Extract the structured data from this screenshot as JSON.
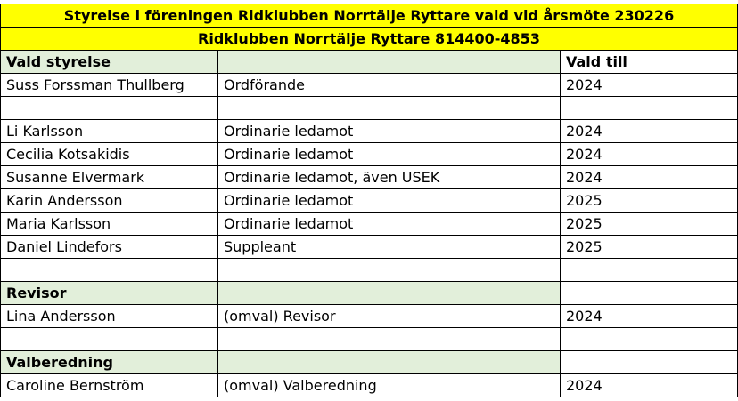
{
  "header": {
    "title": "Styrelse i föreningen Ridklubben Norrtälje Ryttare vald vid årsmöte 230226",
    "subtitle": "Ridklubben Norrtälje Ryttare 814400-4853"
  },
  "columns": {
    "name": "Vald styrelse",
    "role": "",
    "until": "Vald till"
  },
  "board": [
    {
      "name": "Suss Forssman Thullberg",
      "role": "Ordförande",
      "until": "2024"
    },
    {
      "name": "Li Karlsson",
      "role": "Ordinarie ledamot",
      "until": "2024"
    },
    {
      "name": "Cecilia Kotsakidis",
      "role": "Ordinarie ledamot",
      "until": "2024"
    },
    {
      "name": "Susanne Elvermark",
      "role": "Ordinarie ledamot, även USEK",
      "until": "2024"
    },
    {
      "name": "Karin Andersson",
      "role": "Ordinarie ledamot",
      "until": "2025"
    },
    {
      "name": "Maria Karlsson",
      "role": "Ordinarie ledamot",
      "until": "2025"
    },
    {
      "name": "Daniel Lindefors",
      "role": "Suppleant",
      "until": "2025"
    }
  ],
  "revisor": {
    "heading": "Revisor",
    "name": "Lina Andersson",
    "role": "(omval) Revisor",
    "until": "2024"
  },
  "valberedning": {
    "heading": "Valberedning",
    "name": "Caroline Bernström",
    "role": "(omval) Valberedning",
    "until": "2024"
  }
}
